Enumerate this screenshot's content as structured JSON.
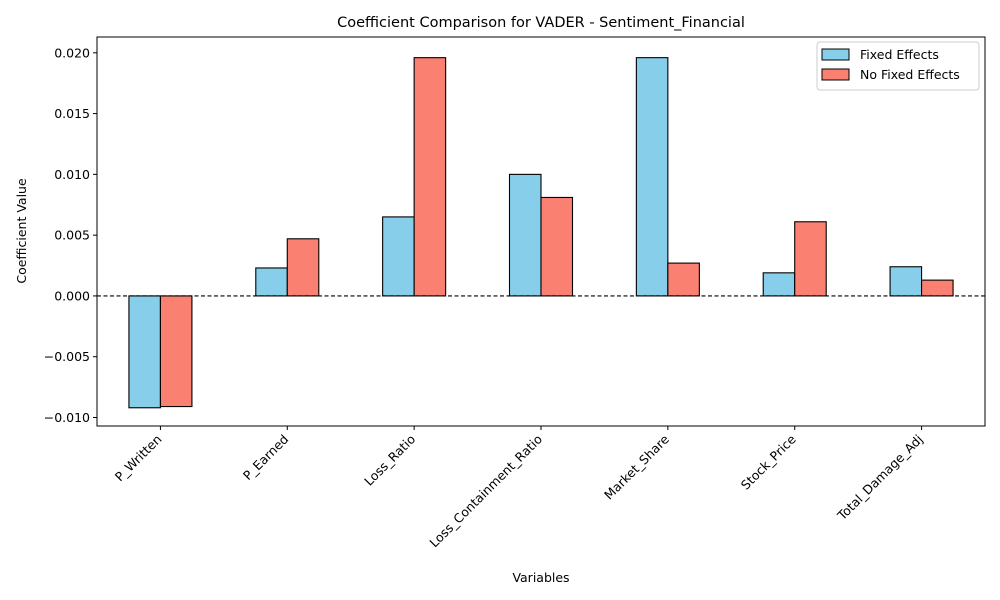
{
  "chart_data": {
    "type": "bar",
    "title": "Coefficient Comparison for VADER - Sentiment_Financial",
    "xlabel": "Variables",
    "ylabel": "Coefficient Value",
    "categories": [
      "P_Written",
      "P_Earned",
      "Loss_Ratio",
      "Loss_Containment_Ratio",
      "Market_Share",
      "Stock_Price",
      "Total_Damage_Adj"
    ],
    "series": [
      {
        "name": "Fixed Effects",
        "color": "#87CEEB",
        "values": [
          -0.0092,
          0.0023,
          0.0065,
          0.01,
          0.0196,
          0.0019,
          0.0024
        ]
      },
      {
        "name": "No Fixed Effects",
        "color": "#FA8072",
        "values": [
          -0.0091,
          0.0047,
          0.0196,
          0.0081,
          0.0027,
          0.0061,
          0.0013
        ]
      }
    ],
    "ylim": [
      -0.0107,
      0.0213
    ],
    "yticks": [
      -0.01,
      -0.005,
      0.0,
      0.005,
      0.01,
      0.015,
      0.02
    ],
    "ytick_labels": [
      "−0.010",
      "−0.005",
      "0.000",
      "0.005",
      "0.010",
      "0.015",
      "0.020"
    ],
    "zero_line": {
      "style": "dashed",
      "color": "#000000"
    },
    "legend_position": "top-right",
    "grid": false
  }
}
